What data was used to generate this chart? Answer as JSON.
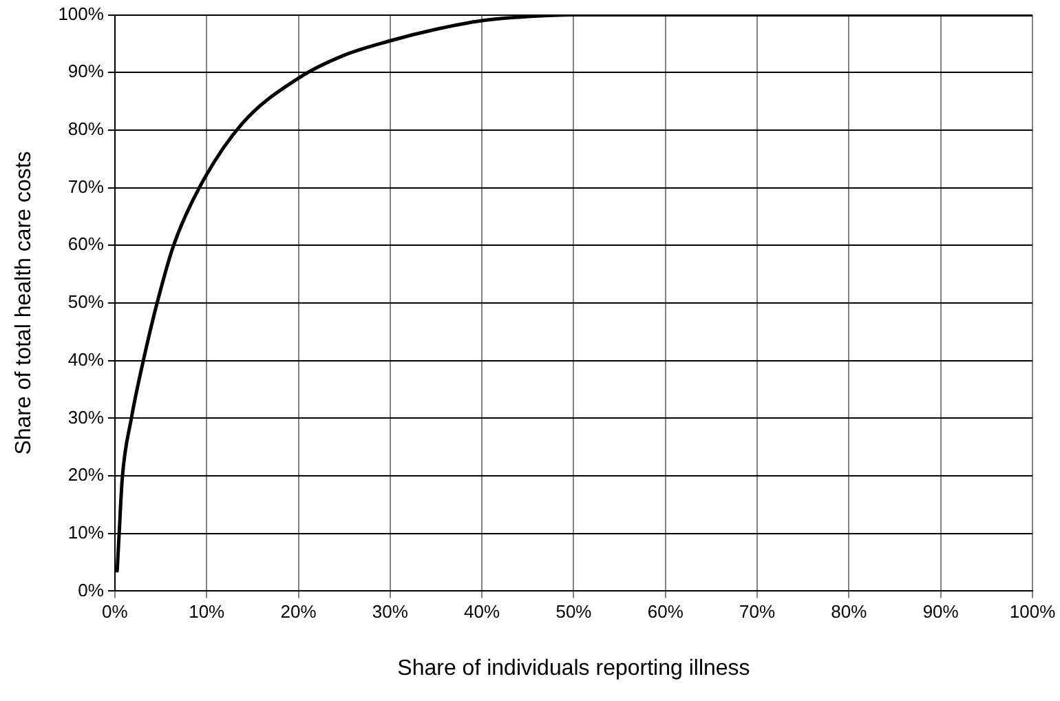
{
  "chart_data": {
    "type": "line",
    "xlabel": "Share of individuals reporting illness",
    "ylabel": "Share of total health care costs",
    "series": [
      {
        "color": "#000000",
        "x": [
          0.25,
          0.5,
          0.8,
          1.8,
          3.1,
          4.6,
          6.4,
          9.2,
          13.8,
          20,
          25,
          30,
          35,
          40,
          45,
          50,
          60,
          70,
          80,
          90,
          100
        ],
        "values": [
          3.5,
          11,
          19.5,
          30,
          40,
          50,
          60,
          70,
          81,
          89,
          93,
          95.5,
          97.5,
          99,
          99.7,
          100,
          100,
          100,
          100,
          100,
          100
        ]
      }
    ],
    "xlim": [
      0,
      100
    ],
    "ylim": [
      0,
      100
    ],
    "xticks": [
      {
        "value": 0,
        "label": "0%"
      },
      {
        "value": 10,
        "label": "10%"
      },
      {
        "value": 20,
        "label": "20%"
      },
      {
        "value": 30,
        "label": "30%"
      },
      {
        "value": 40,
        "label": "40%"
      },
      {
        "value": 50,
        "label": "50%"
      },
      {
        "value": 60,
        "label": "60%"
      },
      {
        "value": 70,
        "label": "70%"
      },
      {
        "value": 80,
        "label": "80%"
      },
      {
        "value": 90,
        "label": "90%"
      },
      {
        "value": 100,
        "label": "100%"
      }
    ],
    "yticks": [
      {
        "value": 0,
        "label": "0%"
      },
      {
        "value": 10,
        "label": "10%"
      },
      {
        "value": 20,
        "label": "20%"
      },
      {
        "value": 30,
        "label": "30%"
      },
      {
        "value": 40,
        "label": "40%"
      },
      {
        "value": 50,
        "label": "50%"
      },
      {
        "value": 60,
        "label": "60%"
      },
      {
        "value": 70,
        "label": "70%"
      },
      {
        "value": 80,
        "label": "80%"
      },
      {
        "value": 90,
        "label": "90%"
      },
      {
        "value": 100,
        "label": "100%"
      }
    ],
    "grid": true,
    "legend": false,
    "marker": "none",
    "line_style": "solid"
  }
}
